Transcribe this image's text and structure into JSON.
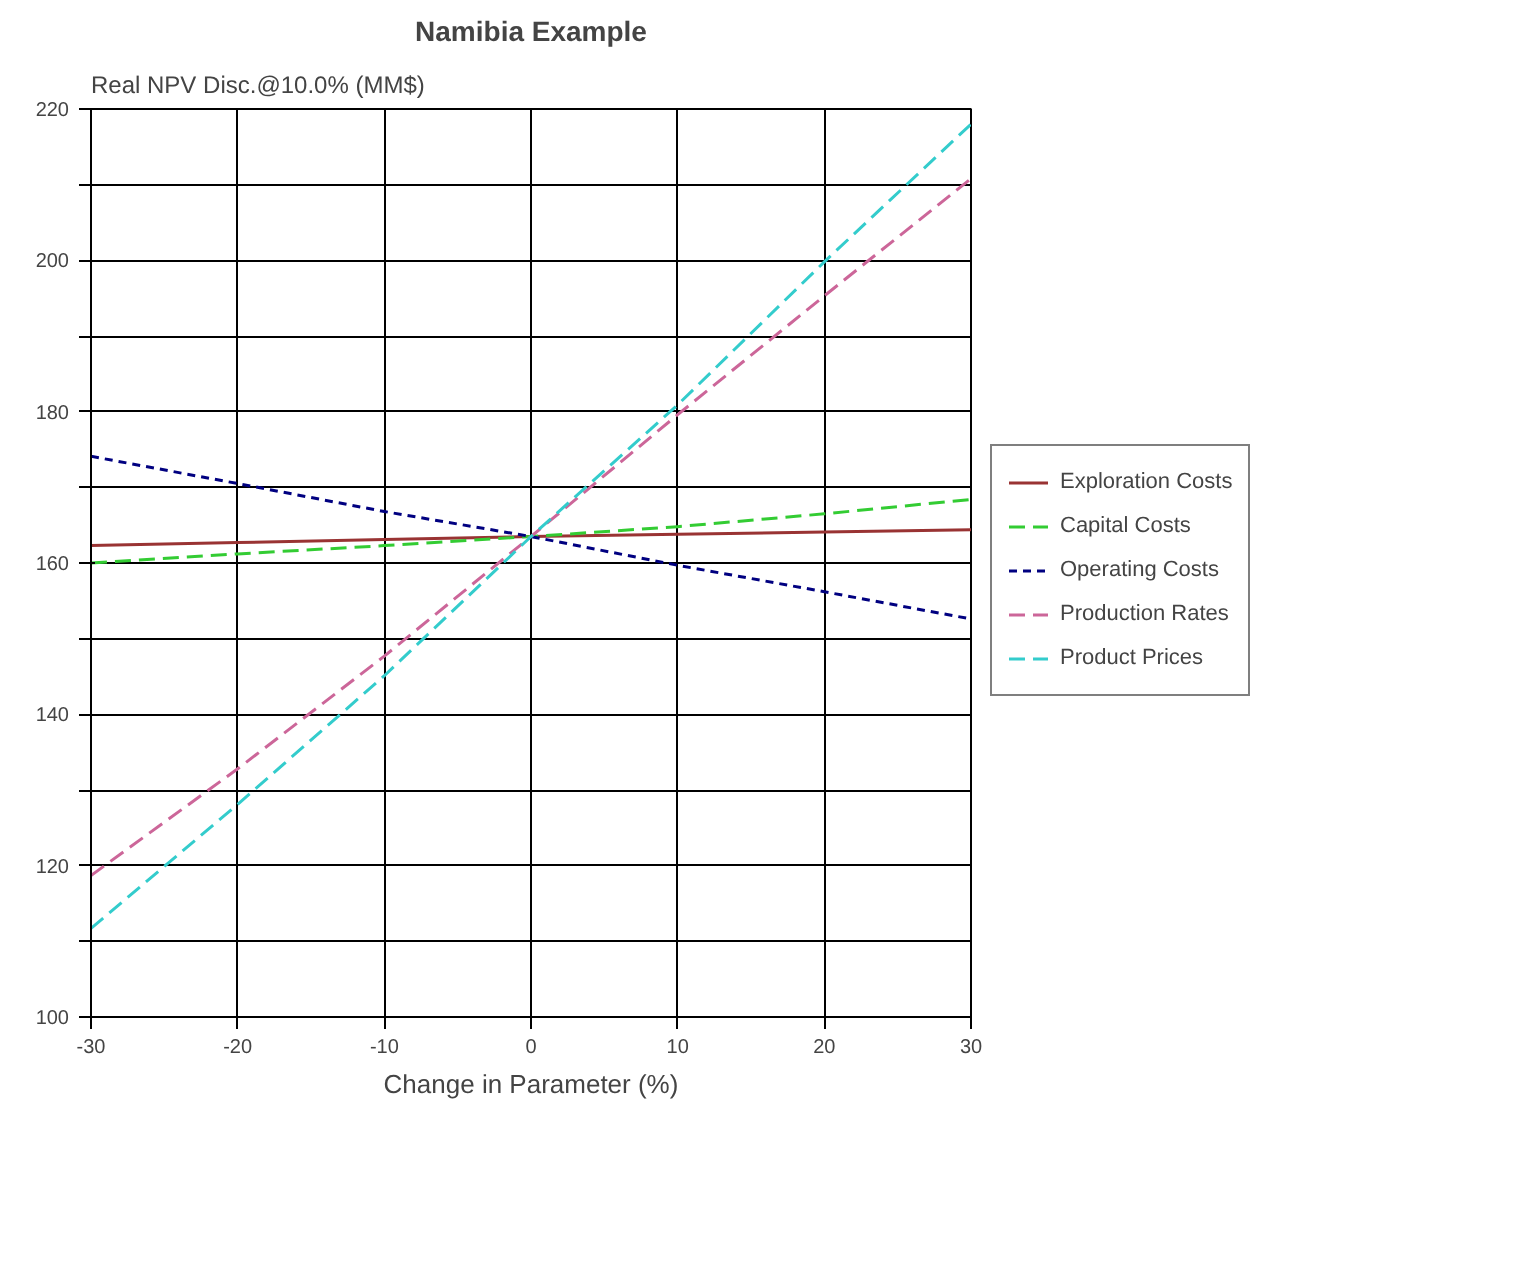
{
  "chart_data": {
    "type": "line",
    "title": "Namibia Example",
    "ylabel": "Real NPV Disc.@10.0% (MM$)",
    "xlabel": "Change in Parameter (%)",
    "x": [
      -30,
      -20,
      -10,
      0,
      10,
      20,
      30
    ],
    "xlim": [
      -30,
      30
    ],
    "xticks": [
      -30,
      -20,
      -10,
      0,
      10,
      20,
      30
    ],
    "ylim": [
      100,
      220
    ],
    "yticks": [
      100,
      {
        "value": 110,
        "label": null
      },
      120,
      {
        "value": 130,
        "label": null
      },
      140,
      {
        "value": 150,
        "label": null
      },
      160,
      {
        "value": 170,
        "label": null
      },
      180,
      {
        "value": 190,
        "label": null
      },
      200,
      {
        "value": 210,
        "label": null
      },
      220
    ],
    "grid": true,
    "legend": "right",
    "marker": "none",
    "series": [
      {
        "name": "Exploration Costs",
        "color": "#993333",
        "line_style": "solid",
        "values": [
          162.3,
          162.7,
          163.1,
          163.5,
          163.8,
          164.1,
          164.4
        ]
      },
      {
        "name": "Capital Costs",
        "color": "#33cc33",
        "line_style": "dashed",
        "values": [
          160,
          161.2,
          162.3,
          163.5,
          164.8,
          166.5,
          168.4
        ]
      },
      {
        "name": "Operating Costs",
        "color": "#000080",
        "line_style": "dotted",
        "values": [
          174.1,
          170.5,
          166.8,
          163.5,
          159.7,
          156.2,
          152.6
        ]
      },
      {
        "name": "Production Rates",
        "color": "#cc6699",
        "line_style": "dashed",
        "values": [
          118.7,
          132.8,
          147.7,
          163.5,
          179.6,
          195.3,
          210.8
        ]
      },
      {
        "name": "Product Prices",
        "color": "#33cccc",
        "line_style": "dashed",
        "values": [
          111.7,
          128.1,
          145.1,
          163.5,
          180.9,
          199.8,
          218
        ]
      }
    ]
  }
}
